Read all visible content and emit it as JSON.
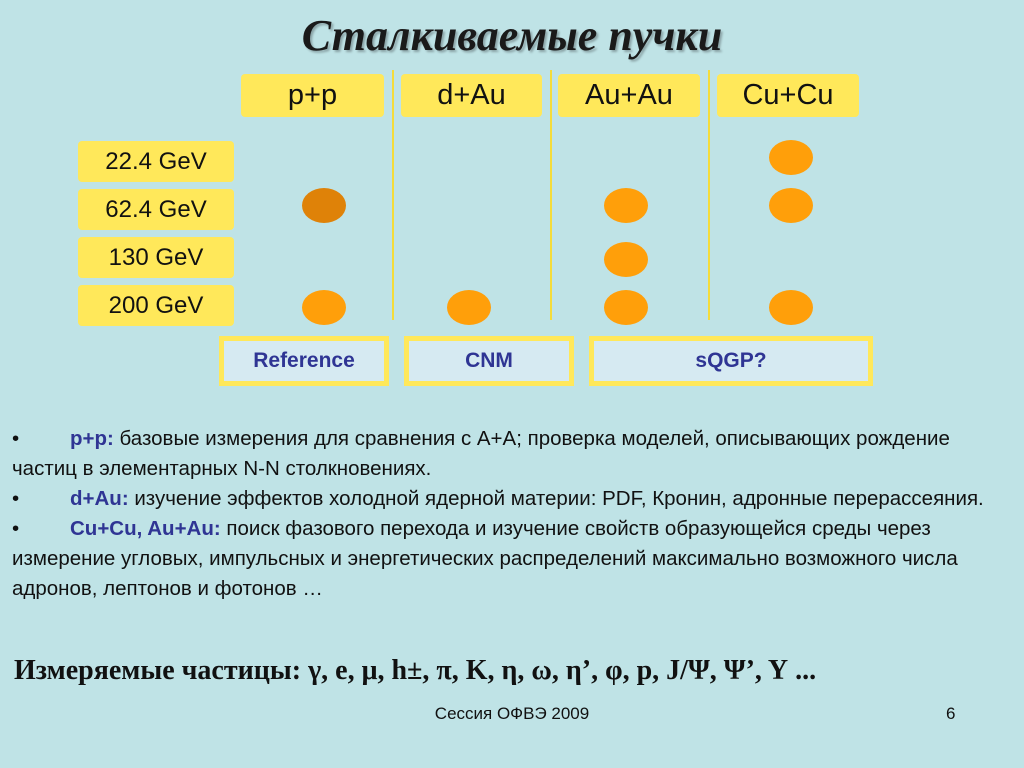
{
  "title": "Сталкиваемые пучки",
  "columns": [
    "p+p",
    "d+Au",
    "Au+Au",
    "Cu+Cu"
  ],
  "energies": [
    "22.4 GeV",
    "62.4 GeV",
    "130 GeV",
    "200 GeV"
  ],
  "colors": {
    "box": "#ffe85a",
    "dot": "#ff9f0a",
    "dot_dark": "#df8208",
    "category_text": "#2f3594"
  },
  "categories": [
    "Reference",
    "CNM",
    "sQGP?"
  ],
  "bullets": [
    {
      "mark": "•",
      "label": "p+p:",
      "text": " базовые измерения для сравнения с A+A; проверка моделей, описывающих рождение частиц в элементарных N-N столкновениях."
    },
    {
      "mark": "•",
      "label": "d+Au:",
      "text": " изучение эффектов холодной ядерной материи: PDF, Кронин, адронные перерассеяния."
    },
    {
      "mark": "•",
      "label": "Cu+Cu, Au+Au:",
      "text": " поиск фазового перехода и изучение свойств образующейся среды через измерение угловых, импульсных и энергетических распределений максимально возможного числа адронов, лептонов и фотонов …"
    }
  ],
  "particles_line": "Измеряемые частицы: γ, e, μ, h±, π, K, η, ω, η’, φ, p, J/Ψ, Ψ’, Υ ...",
  "footer": "Сессия ОФВЭ 2009",
  "page_number": "6"
}
